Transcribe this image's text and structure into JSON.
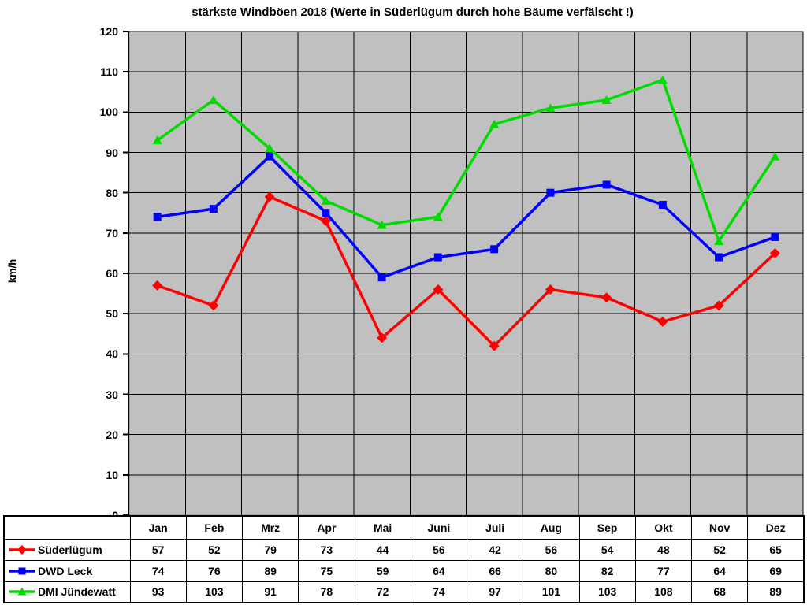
{
  "chart_data": {
    "type": "line",
    "title": "stärkste Windböen 2018 (Werte in Süderlügum durch hohe Bäume verfälscht !)",
    "xlabel": "",
    "ylabel": "km/h",
    "ylim": [
      0,
      120
    ],
    "ytick_step": 10,
    "grid": true,
    "legend_position": "table-left",
    "plot_bg_color": "#C0C0C0",
    "plot_border_color": "#808080",
    "grid_color": "#000000",
    "axis_color": "#000000",
    "categories": [
      "Jan",
      "Feb",
      "Mrz",
      "Apr",
      "Mai",
      "Juni",
      "Juli",
      "Aug",
      "Sep",
      "Okt",
      "Nov",
      "Dez"
    ],
    "series": [
      {
        "name": "Süderlügum",
        "color": "#FF0000",
        "marker": "diamond",
        "values": [
          57,
          52,
          79,
          73,
          44,
          56,
          42,
          56,
          54,
          48,
          52,
          65
        ]
      },
      {
        "name": "DWD Leck",
        "color": "#0000FF",
        "marker": "square",
        "values": [
          74,
          76,
          89,
          75,
          59,
          64,
          66,
          80,
          82,
          77,
          64,
          69
        ]
      },
      {
        "name": "DMI Jündewatt",
        "color": "#00DC00",
        "marker": "triangle",
        "values": [
          93,
          103,
          91,
          78,
          72,
          74,
          97,
          101,
          103,
          108,
          68,
          89
        ]
      }
    ]
  }
}
